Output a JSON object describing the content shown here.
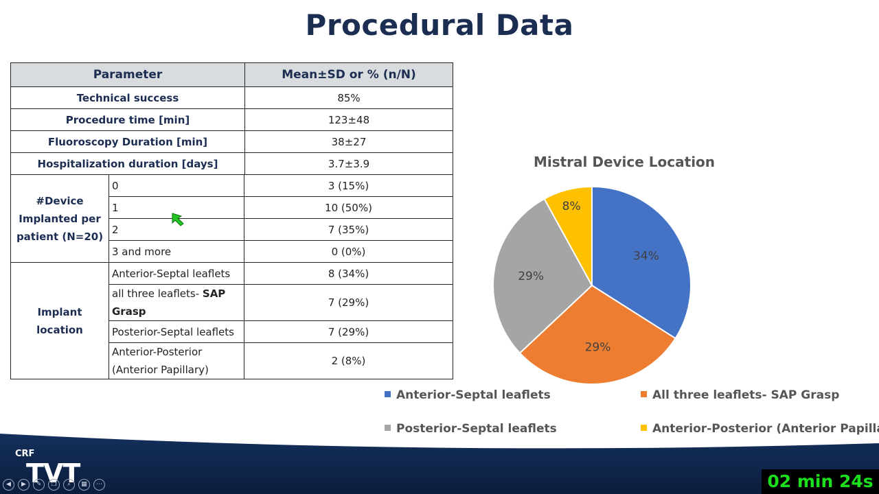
{
  "slide": {
    "title": "Procedural Data"
  },
  "table": {
    "headers": [
      "Parameter",
      "Mean±SD or % (n/N)"
    ],
    "rows": [
      {
        "param": "Technical success",
        "value": "85%"
      },
      {
        "param": "Procedure time [min]",
        "value": "123±48"
      },
      {
        "param": "Fluoroscopy Duration [min]",
        "value": "38±27"
      },
      {
        "param": "Hospitalization duration [days]",
        "value": "3.7±3.9"
      }
    ],
    "device_group": {
      "label_lines": [
        "#Device",
        "Implanted per",
        "patient (N=20)"
      ],
      "rows": [
        {
          "sub": "0",
          "value": "3 (15%)"
        },
        {
          "sub": "1",
          "value": "10 (50%)"
        },
        {
          "sub": "2",
          "value": "7 (35%)"
        },
        {
          "sub": "3 and more",
          "value": "0 (0%)"
        }
      ]
    },
    "location_group": {
      "label": "Implant location",
      "rows": [
        {
          "sub": "Anterior-Septal leaflets",
          "value": "8 (34%)"
        },
        {
          "sub_plain": "all three leaflets- ",
          "sub_bold": "SAP Grasp",
          "value": "7 (29%)"
        },
        {
          "sub": "Posterior-Septal leaflets",
          "value": "7 (29%)"
        },
        {
          "sub": "Anterior-Posterior (Anterior Papillary)",
          "value": "2 (8%)"
        }
      ]
    }
  },
  "chart_data": {
    "type": "pie",
    "title": "Mistral Device Location",
    "categories": [
      "Anterior-Septal leaflets",
      "All three leaflets- SAP Grasp",
      "Posterior-Septal leaflets",
      "Anterior-Posterior (Anterior Papillary"
    ],
    "values": [
      34,
      29,
      29,
      8
    ],
    "labels": [
      "34%",
      "29%",
      "29%",
      "8%"
    ],
    "colors": [
      "#4472c4",
      "#ed7d31",
      "#a5a5a5",
      "#ffc000"
    ],
    "legend_position": "bottom"
  },
  "footer": {
    "logo_small": "CRF",
    "logo_large": "TVT",
    "timer": "02 min 24s",
    "controls": [
      "prev-icon",
      "next-icon",
      "pen-icon",
      "copy-icon",
      "zoom-icon",
      "grid-icon",
      "more-icon"
    ]
  },
  "cursor": {
    "color": "#22c422"
  }
}
